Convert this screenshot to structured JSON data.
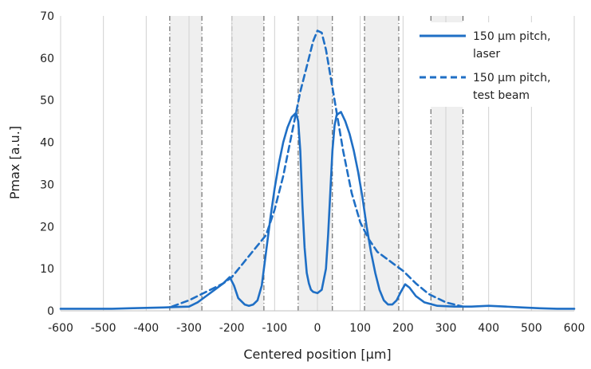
{
  "chart_data": {
    "type": "line",
    "xlabel": "Centered position [µm]",
    "ylabel": "Pmax [a.u.]",
    "xlim": [
      -600,
      600
    ],
    "ylim": [
      0,
      70
    ],
    "xticks": [
      -600,
      -500,
      -400,
      -300,
      -200,
      -100,
      0,
      100,
      200,
      300,
      400,
      500,
      600
    ],
    "yticks": [
      0,
      10,
      20,
      30,
      40,
      50,
      60,
      70
    ],
    "grid": "vertical",
    "legend_position": "top-right",
    "shaded_bands": [
      [
        -345,
        -270
      ],
      [
        -200,
        -125
      ],
      [
        -45,
        35
      ],
      [
        110,
        190
      ],
      [
        265,
        340
      ]
    ],
    "colors": {
      "series": "#1f6fc5",
      "band": "#efefef",
      "grid": "#d0d0d0",
      "band_edge": "#555555"
    },
    "series": [
      {
        "name": "150 µm pitch, laser",
        "style": "solid",
        "x": [
          -600,
          -560,
          -520,
          -480,
          -440,
          -400,
          -360,
          -330,
          -300,
          -280,
          -260,
          -240,
          -220,
          -205,
          -195,
          -185,
          -170,
          -160,
          -150,
          -140,
          -130,
          -120,
          -110,
          -100,
          -90,
          -80,
          -70,
          -60,
          -50,
          -45,
          -40,
          -35,
          -30,
          -25,
          -20,
          -15,
          -10,
          0,
          10,
          20,
          25,
          30,
          35,
          40,
          45,
          55,
          65,
          75,
          85,
          95,
          105,
          115,
          125,
          135,
          145,
          155,
          165,
          175,
          185,
          195,
          205,
          215,
          230,
          250,
          280,
          320,
          360,
          400,
          440,
          480,
          520,
          560,
          600
        ],
        "y": [
          0.5,
          0.5,
          0.5,
          0.5,
          0.6,
          0.7,
          0.8,
          0.9,
          1.0,
          2.0,
          3.5,
          5.0,
          6.5,
          8.0,
          6.0,
          3.0,
          1.5,
          1.2,
          1.5,
          2.5,
          6.0,
          14.0,
          22.0,
          29.0,
          35.0,
          40.0,
          43.5,
          46.0,
          47.0,
          45.0,
          38.0,
          25.0,
          15.0,
          9.0,
          6.5,
          5.0,
          4.5,
          4.2,
          5.0,
          10.0,
          18.0,
          28.0,
          38.0,
          44.0,
          46.5,
          47.2,
          45.0,
          42.0,
          38.0,
          33.0,
          27.0,
          20.0,
          14.0,
          9.0,
          5.0,
          2.5,
          1.5,
          1.5,
          2.5,
          4.5,
          6.3,
          5.5,
          3.5,
          2.0,
          1.2,
          1.0,
          1.0,
          1.2,
          1.0,
          0.8,
          0.6,
          0.5,
          0.5
        ]
      },
      {
        "name": "150 µm pitch, test beam",
        "style": "dashed",
        "x": [
          -340,
          -300,
          -260,
          -220,
          -200,
          -180,
          -160,
          -140,
          -120,
          -100,
          -80,
          -60,
          -40,
          -20,
          -10,
          0,
          10,
          20,
          40,
          60,
          80,
          100,
          120,
          140,
          160,
          180,
          200,
          230,
          260,
          300,
          340
        ],
        "y": [
          1.0,
          2.5,
          4.5,
          6.5,
          8.0,
          10.5,
          13.0,
          15.5,
          18.0,
          24.0,
          32.0,
          42.0,
          52.0,
          60.0,
          64.0,
          66.5,
          66.0,
          62.0,
          50.0,
          38.0,
          28.0,
          21.0,
          17.0,
          14.0,
          12.5,
          11.0,
          9.5,
          6.5,
          4.0,
          2.0,
          1.0
        ]
      }
    ]
  }
}
